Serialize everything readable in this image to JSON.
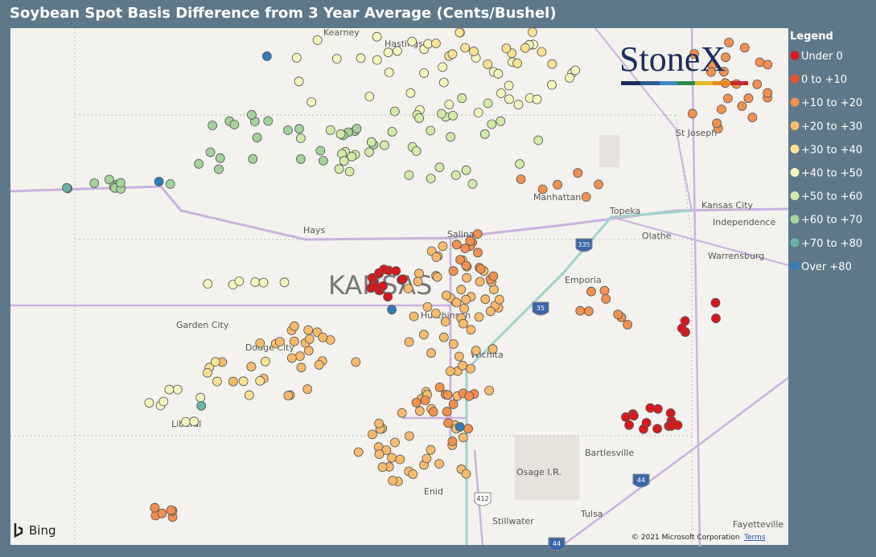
{
  "title": "Soybean Spot Basis Difference from 3 Year Average (Cents/Bushel)",
  "legend": {
    "title": "Legend",
    "items": [
      {
        "label": "Under 0",
        "color": "#d7191c"
      },
      {
        "label": "0 to +10",
        "color": "#e9542f"
      },
      {
        "label": "+10 to +20",
        "color": "#f2904f"
      },
      {
        "label": "+20 to +30",
        "color": "#f8bb6c"
      },
      {
        "label": "+30 to +40",
        "color": "#fbe293"
      },
      {
        "label": "+40 to +50",
        "color": "#f4f6bd"
      },
      {
        "label": "+50 to +60",
        "color": "#d3eaa8"
      },
      {
        "label": "+60 to +70",
        "color": "#a3d39a"
      },
      {
        "label": "+70 to +80",
        "color": "#68b3a6"
      },
      {
        "label": "Over +80",
        "color": "#2f7dbb"
      }
    ]
  },
  "map": {
    "state_label": "KANSAS",
    "cities": [
      "Kearney",
      "Hastings",
      "St Joseph",
      "Manhattan",
      "Topeka",
      "Kansas City",
      "Independence",
      "Olathe",
      "Warrensburg",
      "Hays",
      "Salina",
      "Emporia",
      "Garden City",
      "Dodge City",
      "Hutchinson",
      "Wichita",
      "Liberal",
      "Bartlesville",
      "Osage I.R.",
      "Enid",
      "Tulsa",
      "Stillwater",
      "Fayetteville"
    ],
    "highways": [
      "335",
      "35",
      "44",
      "412",
      "44"
    ],
    "logo": "StoneX",
    "attribution": "Bing",
    "copyright": "© 2021 Microsoft Corporation",
    "terms": "Terms"
  }
}
